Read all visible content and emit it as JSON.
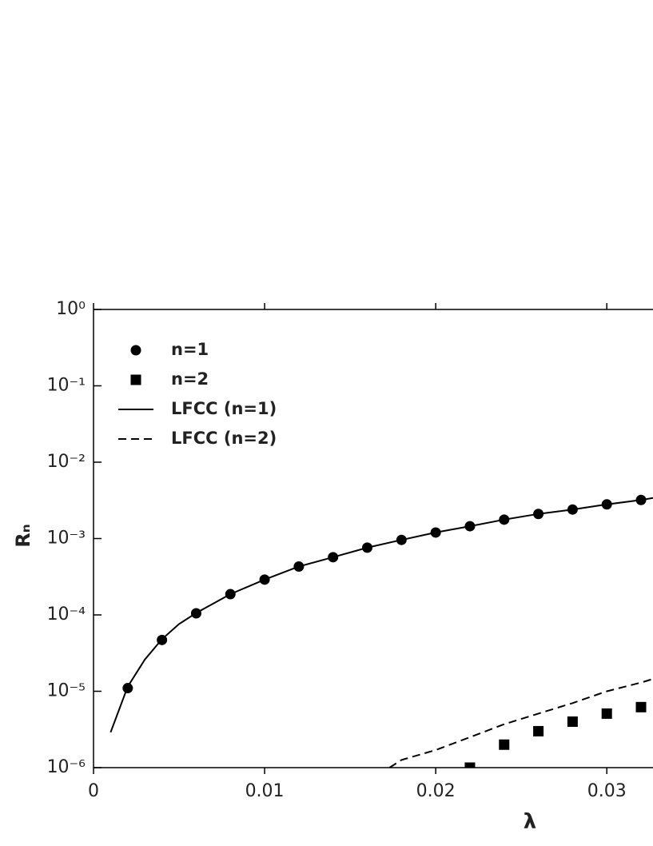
{
  "chart_data": {
    "type": "line",
    "xlabel": "λ",
    "ylabel": "Rₙ",
    "xlim": [
      0,
      0.0327
    ],
    "ylim": [
      1e-06,
      1
    ],
    "ylog": true,
    "xticks": [
      0,
      0.01,
      0.02,
      0.03
    ],
    "yticks": [
      {
        "value": 1,
        "label": "10⁰"
      },
      {
        "value": 0.1,
        "label": "10⁻¹"
      },
      {
        "value": 0.01,
        "label": "10⁻²"
      },
      {
        "value": 0.001,
        "label": "10⁻³"
      },
      {
        "value": 0.0001,
        "label": "10⁻⁴"
      },
      {
        "value": 1e-05,
        "label": "10⁻⁵"
      },
      {
        "value": 1e-06,
        "label": "10⁻⁶"
      }
    ],
    "legend": "upper left",
    "series": [
      {
        "name": "n=1",
        "color": "#000000",
        "marker": "circle",
        "x": [
          0.002,
          0.004,
          0.006,
          0.008,
          0.01,
          0.012,
          0.014,
          0.016,
          0.018,
          0.02,
          0.022,
          0.024,
          0.026,
          0.028,
          0.03,
          0.032
        ],
        "values": [
          1.1e-05,
          4.7e-05,
          0.000105,
          0.000187,
          0.00029,
          0.00043,
          0.00057,
          0.00076,
          0.00096,
          0.0012,
          0.00145,
          0.00177,
          0.0021,
          0.0024,
          0.0028,
          0.0032
        ]
      },
      {
        "name": "n=2",
        "color": "#000000",
        "marker": "square",
        "x": [
          0.022,
          0.024,
          0.026,
          0.028,
          0.03,
          0.032
        ],
        "values": [
          1e-06,
          2e-06,
          3e-06,
          4e-06,
          5.1e-06,
          6.2e-06
        ]
      },
      {
        "name": "LFCC (n=1)",
        "color": "#000000",
        "dash": "solid",
        "x": [
          0.001,
          0.002,
          0.003,
          0.004,
          0.005,
          0.006,
          0.008,
          0.01,
          0.012,
          0.014,
          0.016,
          0.018,
          0.02,
          0.022,
          0.024,
          0.026,
          0.028,
          0.03,
          0.032,
          0.0327
        ],
        "values": [
          2.9e-06,
          1.15e-05,
          2.6e-05,
          4.8e-05,
          7.6e-05,
          0.000106,
          0.000187,
          0.00029,
          0.00043,
          0.00057,
          0.00076,
          0.00096,
          0.0012,
          0.00145,
          0.00177,
          0.0021,
          0.0024,
          0.0028,
          0.0032,
          0.0034
        ]
      },
      {
        "name": "LFCC (n=2)",
        "color": "#000000",
        "dash": "dashed",
        "x": [
          0.0173,
          0.018,
          0.02,
          0.022,
          0.024,
          0.026,
          0.028,
          0.03,
          0.032,
          0.0327
        ],
        "values": [
          1e-06,
          1.26e-06,
          1.7e-06,
          2.5e-06,
          3.7e-06,
          5.1e-06,
          7e-06,
          1e-05,
          1.3e-05,
          1.45e-05
        ]
      }
    ]
  }
}
